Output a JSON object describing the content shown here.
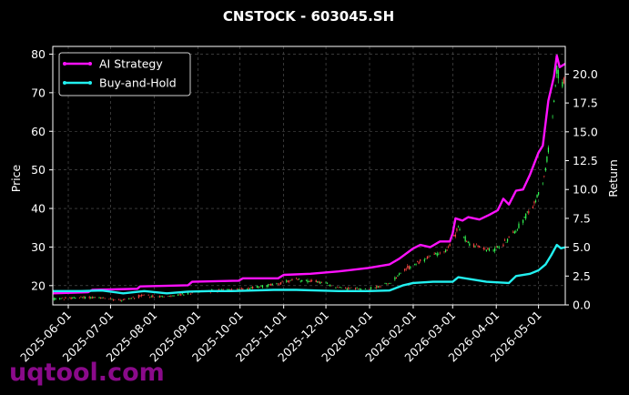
{
  "chart_data": {
    "type": "line",
    "title": "CNSTOCK - 603045.SH",
    "ylabel": "Price",
    "y2label": "Return",
    "ylim": [
      15,
      82
    ],
    "y2lim": [
      0,
      22.4
    ],
    "xlim": [
      "2025-05-21",
      "2026-05-20"
    ],
    "yticks": [
      "20",
      "30",
      "40",
      "50",
      "60",
      "70",
      "80"
    ],
    "y2ticks": [
      "0.0",
      "2.5",
      "5.0",
      "7.5",
      "10.0",
      "12.5",
      "15.0",
      "17.5",
      "20.0"
    ],
    "xticks": [
      "2025-06-01",
      "2025-07-01",
      "2025-08-01",
      "2025-09-01",
      "2025-10-01",
      "2025-11-01",
      "2025-12-01",
      "2026-01-01",
      "2026-02-01",
      "2026-03-01",
      "2026-04-01",
      "2026-05-01"
    ],
    "grid": true,
    "legend": {
      "placement": "top-left"
    },
    "series": [
      {
        "name": "AI Strategy",
        "axis": "right",
        "color": "#ff11ff",
        "points": [
          [
            "2025-05-21",
            1.0
          ],
          [
            "2025-06-15",
            1.1
          ],
          [
            "2025-06-18",
            1.3
          ],
          [
            "2025-07-20",
            1.4
          ],
          [
            "2025-07-22",
            1.6
          ],
          [
            "2025-08-25",
            1.7
          ],
          [
            "2025-08-28",
            2.0
          ],
          [
            "2025-09-30",
            2.1
          ],
          [
            "2025-10-03",
            2.3
          ],
          [
            "2025-10-28",
            2.3
          ],
          [
            "2025-11-01",
            2.6
          ],
          [
            "2025-11-20",
            2.7
          ],
          [
            "2025-12-10",
            2.9
          ],
          [
            "2025-12-31",
            3.2
          ],
          [
            "2026-01-15",
            3.5
          ],
          [
            "2026-01-22",
            4.0
          ],
          [
            "2026-02-01",
            4.9
          ],
          [
            "2026-02-06",
            5.2
          ],
          [
            "2026-02-13",
            5.0
          ],
          [
            "2026-02-20",
            5.5
          ],
          [
            "2026-02-27",
            5.5
          ],
          [
            "2026-03-01",
            6.2
          ],
          [
            "2026-03-03",
            7.5
          ],
          [
            "2026-03-08",
            7.3
          ],
          [
            "2026-03-12",
            7.6
          ],
          [
            "2026-03-20",
            7.4
          ],
          [
            "2026-03-27",
            7.8
          ],
          [
            "2026-04-02",
            8.2
          ],
          [
            "2026-04-06",
            9.2
          ],
          [
            "2026-04-10",
            8.7
          ],
          [
            "2026-04-15",
            9.9
          ],
          [
            "2026-04-20",
            10.0
          ],
          [
            "2026-04-25",
            11.3
          ],
          [
            "2026-05-01",
            13.2
          ],
          [
            "2026-05-04",
            13.8
          ],
          [
            "2026-05-08",
            17.7
          ],
          [
            "2026-05-12",
            19.8
          ],
          [
            "2026-05-14",
            21.6
          ],
          [
            "2026-05-16",
            20.6
          ],
          [
            "2026-05-20",
            20.9
          ]
        ]
      },
      {
        "name": "Buy-and-Hold",
        "axis": "right",
        "color": "#22f0f0",
        "points": [
          [
            "2025-05-21",
            1.2
          ],
          [
            "2025-06-10",
            1.2
          ],
          [
            "2025-06-25",
            1.25
          ],
          [
            "2025-07-10",
            1.0
          ],
          [
            "2025-07-25",
            1.2
          ],
          [
            "2025-08-10",
            1.0
          ],
          [
            "2025-08-25",
            1.15
          ],
          [
            "2025-09-10",
            1.2
          ],
          [
            "2025-09-25",
            1.2
          ],
          [
            "2025-10-10",
            1.25
          ],
          [
            "2025-10-25",
            1.3
          ],
          [
            "2025-11-10",
            1.3
          ],
          [
            "2025-11-25",
            1.25
          ],
          [
            "2025-12-10",
            1.2
          ],
          [
            "2025-12-31",
            1.2
          ],
          [
            "2026-01-15",
            1.25
          ],
          [
            "2026-01-25",
            1.7
          ],
          [
            "2026-02-01",
            1.9
          ],
          [
            "2026-02-15",
            2.0
          ],
          [
            "2026-03-01",
            2.0
          ],
          [
            "2026-03-05",
            2.4
          ],
          [
            "2026-03-15",
            2.2
          ],
          [
            "2026-03-25",
            2.0
          ],
          [
            "2026-04-10",
            1.9
          ],
          [
            "2026-04-15",
            2.5
          ],
          [
            "2026-04-25",
            2.7
          ],
          [
            "2026-05-01",
            3.0
          ],
          [
            "2026-05-06",
            3.5
          ],
          [
            "2026-05-10",
            4.3
          ],
          [
            "2026-05-14",
            5.2
          ],
          [
            "2026-05-17",
            4.9
          ],
          [
            "2026-05-20",
            5.0
          ]
        ]
      }
    ],
    "candlesticks": {
      "axis": "left",
      "up_color": "#33ff55",
      "down_color": "#ff4444",
      "price_path": [
        [
          "2025-05-21",
          16.5
        ],
        [
          "2025-06-15",
          17.0
        ],
        [
          "2025-07-10",
          16.3
        ],
        [
          "2025-07-25",
          17.5
        ],
        [
          "2025-08-10",
          17.0
        ],
        [
          "2025-09-01",
          18.5
        ],
        [
          "2025-10-01",
          19.0
        ],
        [
          "2025-10-20",
          20.0
        ],
        [
          "2025-11-10",
          21.5
        ],
        [
          "2025-11-25",
          21.0
        ],
        [
          "2025-12-10",
          19.5
        ],
        [
          "2025-12-31",
          19.0
        ],
        [
          "2026-01-15",
          20.5
        ],
        [
          "2026-01-25",
          24.0
        ],
        [
          "2026-02-05",
          26.0
        ],
        [
          "2026-02-15",
          28.0
        ],
        [
          "2026-02-25",
          29.0
        ],
        [
          "2026-03-05",
          35.0
        ],
        [
          "2026-03-12",
          31.0
        ],
        [
          "2026-03-20",
          30.0
        ],
        [
          "2026-03-28",
          29.0
        ],
        [
          "2026-04-05",
          30.5
        ],
        [
          "2026-04-12",
          33.0
        ],
        [
          "2026-04-20",
          37.0
        ],
        [
          "2026-04-28",
          41.0
        ],
        [
          "2026-05-05",
          48.0
        ],
        [
          "2026-05-10",
          60.0
        ],
        [
          "2026-05-14",
          76.0
        ],
        [
          "2026-05-17",
          72.0
        ],
        [
          "2026-05-20",
          73.0
        ]
      ]
    }
  },
  "watermark": {
    "text": "uqtool.com"
  }
}
